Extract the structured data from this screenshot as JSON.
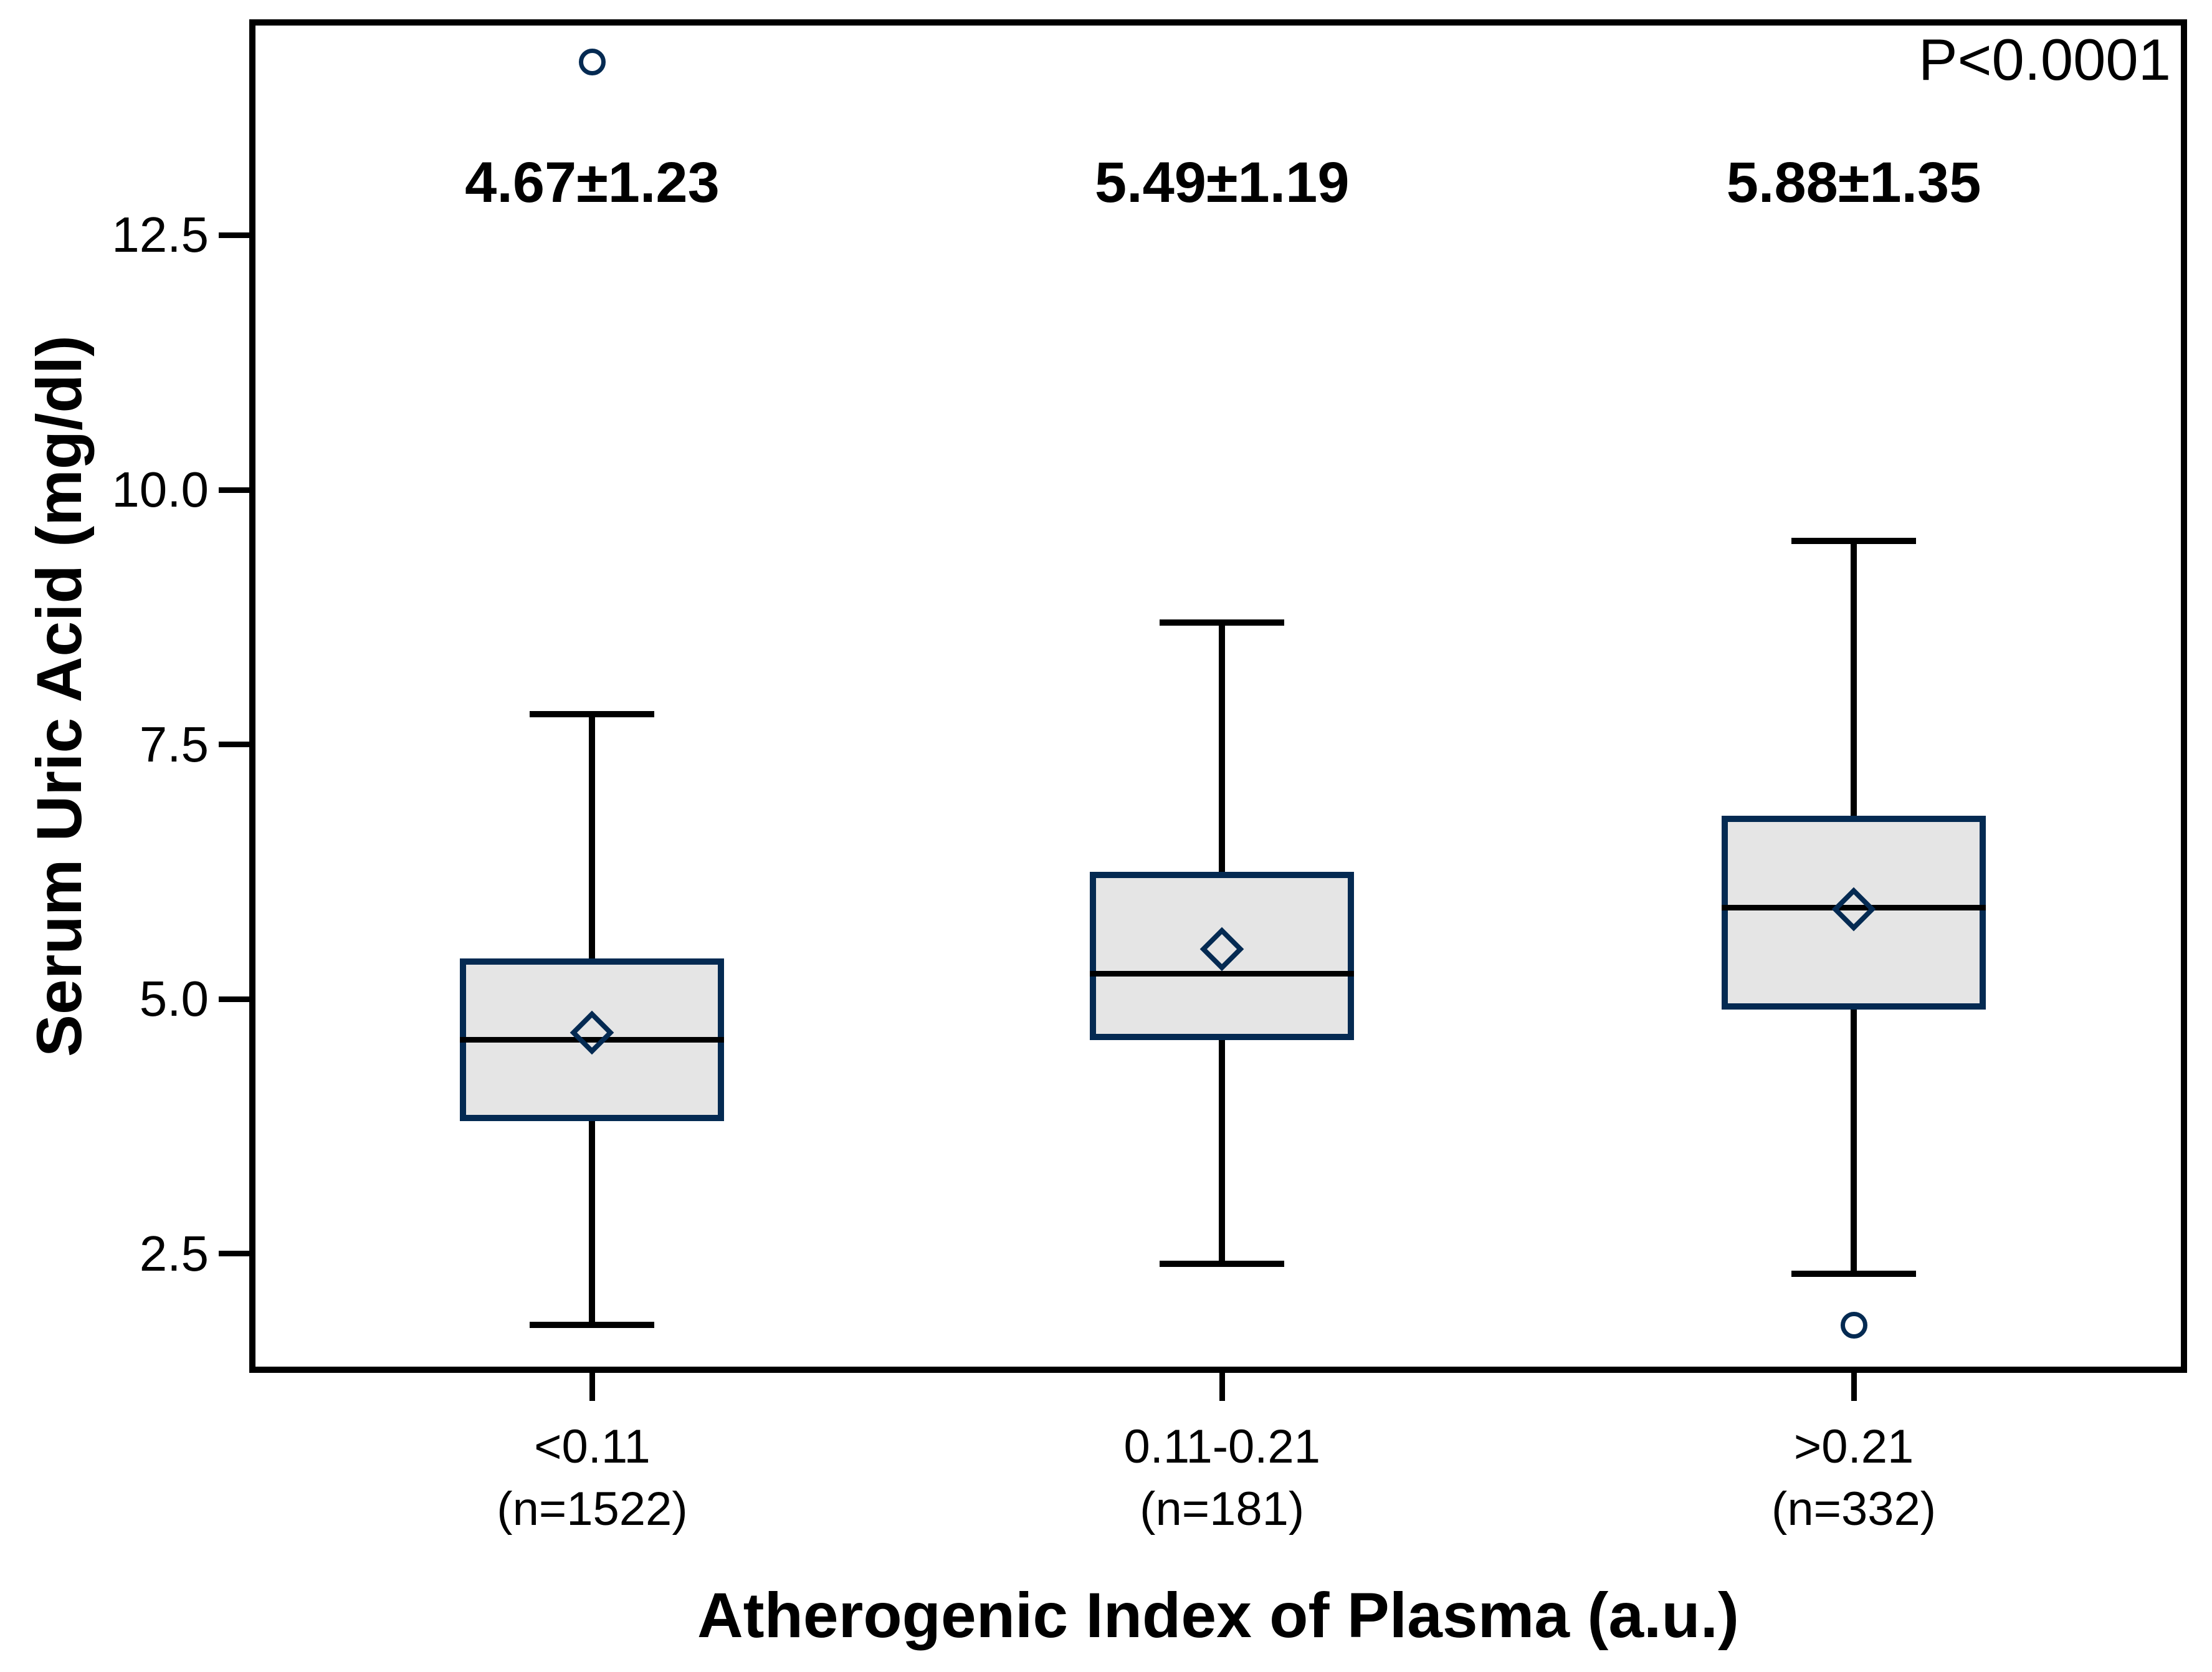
{
  "annotations": {
    "p_value": "P<0.0001"
  },
  "y_axis": {
    "label": "Serum Uric Acid (mg/dl)",
    "tick_labels": [
      "12.5",
      "10.0",
      "7.5",
      "5.0",
      "2.5"
    ],
    "tick_values": [
      12.5,
      10.0,
      7.5,
      5.0,
      2.5
    ]
  },
  "x_axis": {
    "label": "Atherogenic Index of Plasma (a.u.)"
  },
  "chart_data": {
    "type": "boxplot",
    "title": "",
    "ylabel": "Serum Uric Acid (mg/dl)",
    "xlabel": "Atherogenic Index of Plasma (a.u.)",
    "ylim": [
      1.33,
      14.62
    ],
    "grid": false,
    "annotation": "P<0.0001",
    "groups": [
      {
        "category": "<0.11",
        "n_label": "(n=1522)",
        "mean_label": "4.67±1.23",
        "mean": 4.67,
        "sd": 1.23,
        "median": 4.6,
        "q1": 3.8,
        "q3": 5.4,
        "whisker_low": 1.8,
        "whisker_high": 7.8,
        "outliers": [
          14.2
        ],
        "x_frac": 0.177
      },
      {
        "category": "0.11-0.21",
        "n_label": "(n=181)",
        "mean_label": "5.49±1.19",
        "mean": 5.49,
        "sd": 1.19,
        "median": 5.25,
        "q1": 4.6,
        "q3": 6.25,
        "whisker_low": 2.4,
        "whisker_high": 8.7,
        "outliers": [],
        "x_frac": 0.502
      },
      {
        "category": ">0.21",
        "n_label": "(n=332)",
        "mean_label": "5.88±1.35",
        "mean": 5.88,
        "sd": 1.35,
        "median": 5.9,
        "q1": 4.9,
        "q3": 6.8,
        "whisker_low": 2.3,
        "whisker_high": 9.5,
        "outliers": [
          1.8
        ],
        "x_frac": 0.828
      }
    ],
    "colors": {
      "box_border": "#042a52",
      "box_fill": "#e5e5e5",
      "line": "#000000",
      "marker": "#042a52",
      "background": "#ffffff"
    }
  }
}
